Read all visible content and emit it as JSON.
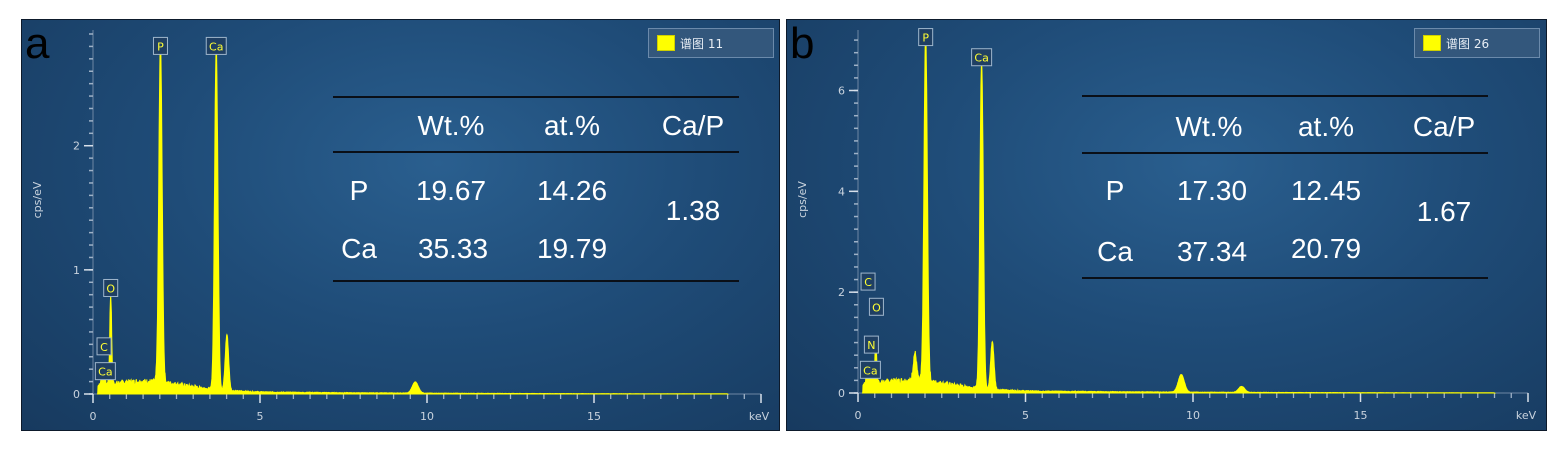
{
  "panels": [
    {
      "id": "a",
      "letter": "a",
      "legend": "谱图 11",
      "ylabel": "cps/eV",
      "xunit": "keV",
      "xticks": [
        "0",
        "5",
        "10",
        "15"
      ],
      "yticks": [
        "0",
        "1",
        "2"
      ],
      "table": {
        "headers": [
          "",
          "Wt.%",
          "at.%",
          "Ca/P"
        ],
        "rows": [
          {
            "el": "P",
            "wt": "19.67",
            "at": "14.26"
          },
          {
            "el": "Ca",
            "wt": "35.33",
            "at": "19.79"
          }
        ],
        "ratio": "1.38"
      }
    },
    {
      "id": "b",
      "letter": "b",
      "legend": "谱图 26",
      "ylabel": "cps/eV",
      "xunit": "keV",
      "xticks": [
        "0",
        "5",
        "10",
        "15"
      ],
      "yticks": [
        "0",
        "2",
        "4",
        "6"
      ],
      "table": {
        "headers": [
          "",
          "Wt.%",
          "at.%",
          "Ca/P"
        ],
        "rows": [
          {
            "el": "P",
            "wt": "17.30",
            "at": "12.45"
          },
          {
            "el": "Ca",
            "wt": "37.34",
            "at": "20.79"
          }
        ],
        "ratio": "1.67"
      }
    }
  ],
  "chart_data": [
    {
      "type": "line",
      "xlabel": "keV",
      "ylabel": "cps/eV",
      "xlim": [
        0,
        20
      ],
      "ylim": [
        0,
        2.9
      ],
      "line_color": "#ffff00",
      "peaks": [
        {
          "label": "C",
          "x": 0.28,
          "y": 0.12
        },
        {
          "label": "Ca",
          "x": 0.34,
          "y": 0.06
        },
        {
          "label": "O",
          "x": 0.53,
          "y": 0.72
        },
        {
          "label": "P",
          "x": 2.02,
          "y": 2.75
        },
        {
          "label": "Ca",
          "x": 3.69,
          "y": 2.75
        },
        {
          "label": "",
          "x": 4.01,
          "y": 0.45
        },
        {
          "label": "",
          "x": 9.65,
          "y": 0.09
        }
      ],
      "labels": [
        {
          "text": "O",
          "x": 0.53,
          "y": 0.85
        },
        {
          "text": "C",
          "x": 0.33,
          "y": 0.38
        },
        {
          "text": "Ca",
          "x": 0.37,
          "y": 0.18
        },
        {
          "text": "P",
          "x": 2.02,
          "y": 2.8
        },
        {
          "text": "Ca",
          "x": 3.69,
          "y": 2.8
        }
      ],
      "grid": false,
      "legend": "top-right"
    },
    {
      "type": "line",
      "xlabel": "keV",
      "ylabel": "cps/eV",
      "xlim": [
        0,
        20
      ],
      "ylim": [
        0,
        7.2
      ],
      "line_color": "#ffff00",
      "peaks": [
        {
          "label": "C",
          "x": 0.28,
          "y": 0.35
        },
        {
          "label": "N",
          "x": 0.39,
          "y": 0.35
        },
        {
          "label": "O",
          "x": 0.53,
          "y": 0.8
        },
        {
          "label": "",
          "x": 1.7,
          "y": 0.55
        },
        {
          "label": "P",
          "x": 2.02,
          "y": 6.95
        },
        {
          "label": "Ca",
          "x": 3.69,
          "y": 6.5
        },
        {
          "label": "",
          "x": 4.01,
          "y": 0.95
        },
        {
          "label": "",
          "x": 9.65,
          "y": 0.35
        },
        {
          "label": "",
          "x": 11.45,
          "y": 0.12
        }
      ],
      "labels": [
        {
          "text": "C",
          "x": 0.3,
          "y": 2.2
        },
        {
          "text": "O",
          "x": 0.55,
          "y": 1.7
        },
        {
          "text": "N",
          "x": 0.4,
          "y": 0.95
        },
        {
          "text": "Ca",
          "x": 0.37,
          "y": 0.45
        },
        {
          "text": "P",
          "x": 2.02,
          "y": 7.05
        },
        {
          "text": "Ca",
          "x": 3.69,
          "y": 6.65
        }
      ],
      "grid": false,
      "legend": "top-right"
    }
  ]
}
